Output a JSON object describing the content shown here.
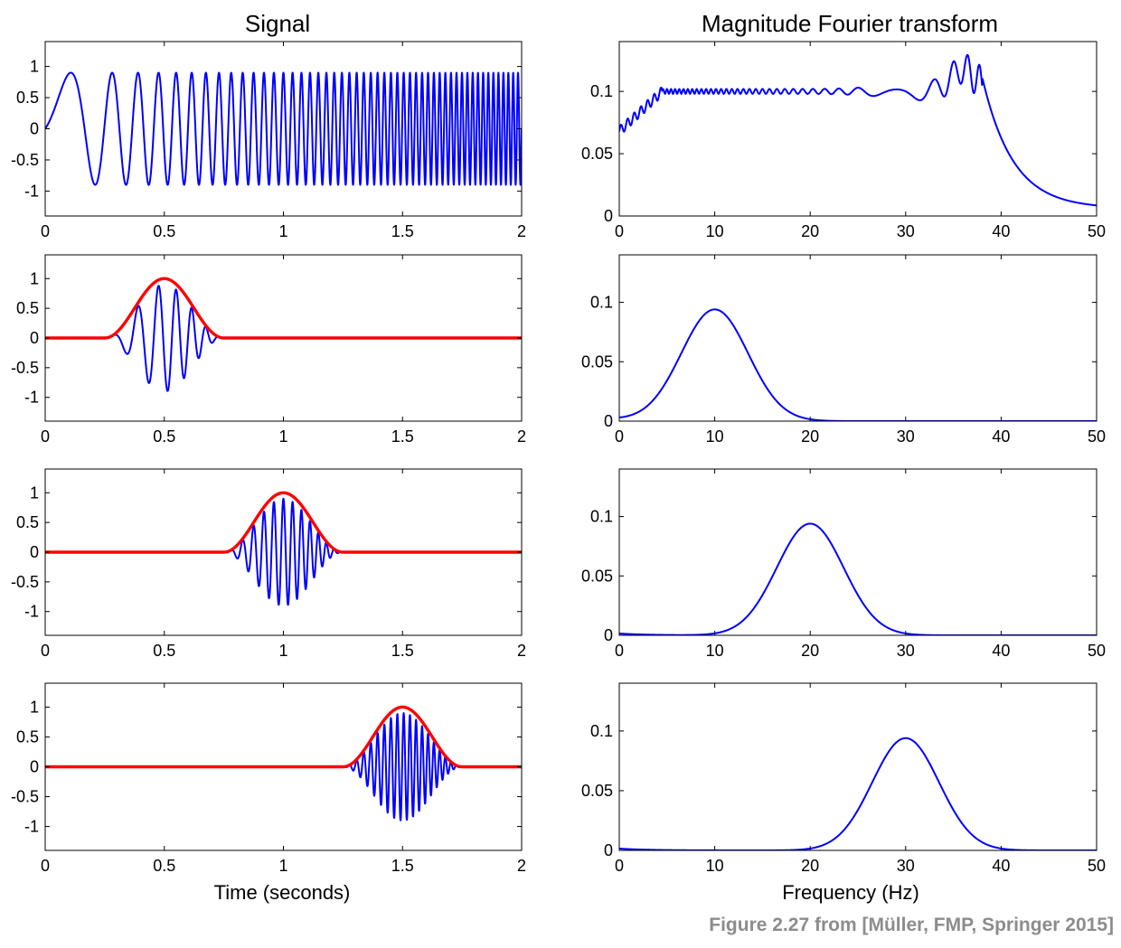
{
  "figure": {
    "left_title": "Signal",
    "right_title": "Magnitude Fourier transform",
    "left_xlabel": "Time (seconds)",
    "right_xlabel": "Frequency (Hz)",
    "caption": "Figure 2.27 from [Müller, FMP, Springer 2015]"
  },
  "colors": {
    "signal": "#0000ff",
    "window": "#ff0000",
    "axes": "#000000"
  },
  "chart_data": [
    {
      "type": "line",
      "panel": "signal-full",
      "xlim": [
        0,
        2
      ],
      "ylim": [
        -1.4,
        1.4
      ],
      "xticks": [
        0,
        0.5,
        1,
        1.5,
        2
      ],
      "xtick_labels": [
        "0",
        "0.5",
        "1",
        "1.5",
        "2"
      ],
      "yticks": [
        1,
        0.5,
        0,
        -0.5,
        -1
      ],
      "ytick_labels": [
        "1",
        "0.5",
        "0",
        "-0.5",
        "-1"
      ],
      "series": [
        {
          "kind": "chirp",
          "amplitude": 0.9,
          "f_start": 1,
          "f_end": 50,
          "t_start": 0,
          "t_end": 2,
          "color": "#0000ff"
        }
      ]
    },
    {
      "type": "line",
      "panel": "spectrum-full",
      "xlim": [
        0,
        50
      ],
      "ylim": [
        0,
        0.14
      ],
      "xticks": [
        0,
        10,
        20,
        30,
        40,
        50
      ],
      "xtick_labels": [
        "0",
        "10",
        "20",
        "30",
        "40",
        "50"
      ],
      "yticks": [
        0.1,
        0.05,
        0
      ],
      "ytick_labels": [
        "0.1",
        "0.05",
        "0"
      ],
      "series": [
        {
          "kind": "chirp-spectrum",
          "plateau": 0.1,
          "start_value": 0.068,
          "peak_freq": 36,
          "peak_value": 0.118,
          "end_value": 0.006,
          "color": "#0000ff"
        }
      ]
    },
    {
      "type": "line",
      "panel": "signal-window-1",
      "xlim": [
        0,
        2
      ],
      "ylim": [
        -1.4,
        1.4
      ],
      "xticks": [
        0,
        0.5,
        1,
        1.5,
        2
      ],
      "xtick_labels": [
        "0",
        "0.5",
        "1",
        "1.5",
        "2"
      ],
      "yticks": [
        1,
        0.5,
        0,
        -0.5,
        -1
      ],
      "ytick_labels": [
        "1",
        "0.5",
        "0",
        "-0.5",
        "-1"
      ],
      "series": [
        {
          "kind": "windowed-chirp",
          "center": 0.5,
          "width": 0.5,
          "amplitude": 0.9,
          "color": "#0000ff"
        },
        {
          "kind": "window",
          "center": 0.5,
          "width": 0.5,
          "peak": 1,
          "color": "#ff0000"
        }
      ]
    },
    {
      "type": "line",
      "panel": "spectrum-window-1",
      "xlim": [
        0,
        50
      ],
      "ylim": [
        0,
        0.14
      ],
      "xticks": [
        0,
        10,
        20,
        30,
        40,
        50
      ],
      "xtick_labels": [
        "0",
        "10",
        "20",
        "30",
        "40",
        "50"
      ],
      "yticks": [
        0.1,
        0.05,
        0
      ],
      "ytick_labels": [
        "0.1",
        "0.05",
        "0"
      ],
      "series": [
        {
          "kind": "peak",
          "center": 10,
          "peak_value": 0.094,
          "color": "#0000ff"
        }
      ]
    },
    {
      "type": "line",
      "panel": "signal-window-2",
      "xlim": [
        0,
        2
      ],
      "ylim": [
        -1.4,
        1.4
      ],
      "xticks": [
        0,
        0.5,
        1,
        1.5,
        2
      ],
      "xtick_labels": [
        "0",
        "0.5",
        "1",
        "1.5",
        "2"
      ],
      "yticks": [
        1,
        0.5,
        0,
        -0.5,
        -1
      ],
      "ytick_labels": [
        "1",
        "0.5",
        "0",
        "-0.5",
        "-1"
      ],
      "series": [
        {
          "kind": "windowed-chirp",
          "center": 1.0,
          "width": 0.5,
          "amplitude": 0.9,
          "color": "#0000ff"
        },
        {
          "kind": "window",
          "center": 1.0,
          "width": 0.5,
          "peak": 1,
          "color": "#ff0000"
        }
      ]
    },
    {
      "type": "line",
      "panel": "spectrum-window-2",
      "xlim": [
        0,
        50
      ],
      "ylim": [
        0,
        0.14
      ],
      "xticks": [
        0,
        10,
        20,
        30,
        40,
        50
      ],
      "xtick_labels": [
        "0",
        "10",
        "20",
        "30",
        "40",
        "50"
      ],
      "yticks": [
        0.1,
        0.05,
        0
      ],
      "ytick_labels": [
        "0.1",
        "0.05",
        "0"
      ],
      "series": [
        {
          "kind": "peak",
          "center": 20,
          "peak_value": 0.094,
          "color": "#0000ff"
        }
      ]
    },
    {
      "type": "line",
      "panel": "signal-window-3",
      "xlim": [
        0,
        2
      ],
      "ylim": [
        -1.4,
        1.4
      ],
      "xticks": [
        0,
        0.5,
        1,
        1.5,
        2
      ],
      "xtick_labels": [
        "0",
        "0.5",
        "1",
        "1.5",
        "2"
      ],
      "yticks": [
        1,
        0.5,
        0,
        -0.5,
        -1
      ],
      "ytick_labels": [
        "1",
        "0.5",
        "0",
        "-0.5",
        "-1"
      ],
      "series": [
        {
          "kind": "windowed-chirp",
          "center": 1.5,
          "width": 0.5,
          "amplitude": 0.9,
          "color": "#0000ff"
        },
        {
          "kind": "window",
          "center": 1.5,
          "width": 0.5,
          "peak": 1,
          "color": "#ff0000"
        }
      ]
    },
    {
      "type": "line",
      "panel": "spectrum-window-3",
      "xlim": [
        0,
        50
      ],
      "ylim": [
        0,
        0.14
      ],
      "xticks": [
        0,
        10,
        20,
        30,
        40,
        50
      ],
      "xtick_labels": [
        "0",
        "10",
        "20",
        "30",
        "40",
        "50"
      ],
      "yticks": [
        0.1,
        0.05,
        0
      ],
      "ytick_labels": [
        "0.1",
        "0.05",
        "0"
      ],
      "series": [
        {
          "kind": "peak",
          "center": 30,
          "peak_value": 0.094,
          "color": "#0000ff"
        }
      ]
    }
  ]
}
